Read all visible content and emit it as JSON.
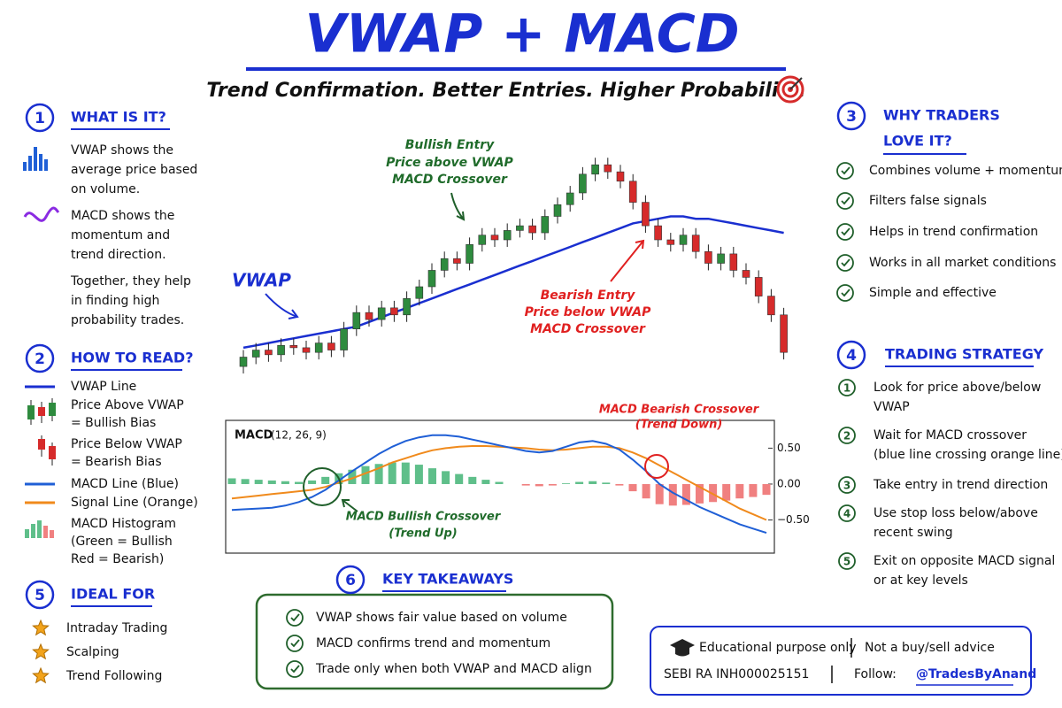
{
  "title": "VWAP + MACD",
  "subtitle": "Trend Confirmation. Better Entries. Higher Probability.",
  "what_is_it": {
    "number": "1",
    "heading": "WHAT IS IT?",
    "items": [
      [
        "VWAP shows the",
        "average price based",
        "on volume."
      ],
      [
        "MACD shows the",
        "momentum and",
        "trend direction."
      ],
      [
        "Together, they help",
        "in finding high",
        "probability trades."
      ]
    ]
  },
  "how_to_read": {
    "number": "2",
    "heading": "HOW TO READ?",
    "items": [
      [
        "VWAP Line"
      ],
      [
        "Price Above VWAP",
        "= Bullish Bias"
      ],
      [
        "Price Below VWAP",
        "= Bearish Bias"
      ],
      [
        "MACD Line (Blue)"
      ],
      [
        "Signal Line (Orange)"
      ],
      [
        "MACD Histogram",
        "(Green = Bullish",
        "Red = Bearish)"
      ]
    ]
  },
  "ideal_for": {
    "number": "5",
    "heading": "IDEAL FOR",
    "items": [
      "Intraday Trading",
      "Scalping",
      "Trend Following"
    ]
  },
  "why_traders": {
    "number": "3",
    "heading": [
      "WHY TRADERS",
      "LOVE IT?"
    ],
    "items": [
      "Combines volume + momentum",
      "Filters false signals",
      "Helps in trend confirmation",
      "Works in all market conditions",
      "Simple and effective"
    ]
  },
  "trading_strategy": {
    "number": "4",
    "heading": "TRADING STRATEGY",
    "steps": [
      {
        "number": "1",
        "lines": [
          "Look for price above/below",
          "VWAP"
        ]
      },
      {
        "number": "2",
        "lines": [
          "Wait for MACD crossover",
          "(blue line crossing orange line)"
        ]
      },
      {
        "number": "3",
        "lines": [
          "Take entry in trend direction"
        ]
      },
      {
        "number": "4",
        "lines": [
          "Use stop loss below/above",
          "recent swing"
        ]
      },
      {
        "number": "5",
        "lines": [
          "Exit on opposite MACD signal",
          "or at key levels"
        ]
      }
    ]
  },
  "key_takeaways": {
    "number": "6",
    "heading": "KEY TAKEAWAYS",
    "items": [
      "VWAP shows fair value based on volume",
      "MACD confirms trend and momentum",
      "Trade only when both VWAP and MACD align"
    ]
  },
  "footer": {
    "disclaimer": "Educational purpose only",
    "advice": "Not a buy/sell advice",
    "registration": "SEBI RA INH000025151",
    "follow": "Follow:",
    "handle": "@TradesByAnand"
  },
  "chart_data": [
    {
      "type": "candlestick",
      "ylim": [
        0,
        100
      ],
      "up_color": "#2e8b3e",
      "down_color": "#d62b2b",
      "vwap_color": "#1a2fd0",
      "vwap_label": "VWAP",
      "bullish_annotation": [
        "Bullish Entry",
        "Price above VWAP",
        "MACD Crossover"
      ],
      "bearish_annotation": [
        "Bearish Entry",
        "Price below VWAP",
        "MACD Crossover"
      ],
      "open": [
        6,
        10,
        13,
        11,
        15,
        14,
        12,
        16,
        13,
        22,
        29,
        26,
        31,
        28,
        35,
        40,
        47,
        52,
        50,
        58,
        62,
        60,
        64,
        66,
        63,
        70,
        75,
        80,
        88,
        92,
        89,
        85,
        76,
        66,
        60,
        58,
        62,
        55,
        50,
        54,
        47,
        44,
        36,
        28
      ],
      "high": [
        13,
        16,
        16,
        18,
        18,
        17,
        19,
        19,
        25,
        32,
        32,
        34,
        34,
        38,
        43,
        50,
        55,
        55,
        61,
        65,
        65,
        67,
        69,
        69,
        73,
        78,
        83,
        91,
        95,
        95,
        92,
        88,
        79,
        69,
        63,
        65,
        65,
        58,
        57,
        57,
        50,
        47,
        39,
        31
      ],
      "low": [
        3,
        7,
        8,
        8,
        11,
        9,
        9,
        10,
        10,
        19,
        23,
        23,
        25,
        25,
        32,
        37,
        44,
        47,
        47,
        55,
        57,
        57,
        61,
        60,
        60,
        67,
        72,
        77,
        85,
        86,
        82,
        73,
        63,
        57,
        55,
        55,
        52,
        47,
        47,
        44,
        41,
        33,
        25,
        9
      ],
      "close": [
        10,
        13,
        11,
        15,
        14,
        12,
        16,
        13,
        22,
        29,
        26,
        31,
        28,
        35,
        40,
        47,
        52,
        50,
        58,
        62,
        60,
        64,
        66,
        63,
        70,
        75,
        80,
        88,
        92,
        89,
        85,
        76,
        66,
        60,
        58,
        62,
        55,
        50,
        54,
        47,
        44,
        36,
        28,
        12
      ],
      "vwap": [
        14,
        15,
        16,
        17,
        18,
        19,
        20,
        21,
        22,
        23,
        25,
        27,
        29,
        31,
        33,
        35,
        37,
        39,
        41,
        43,
        45,
        47,
        49,
        51,
        53,
        55,
        57,
        59,
        61,
        63,
        65,
        67,
        68,
        69,
        70,
        70,
        69,
        69,
        68,
        67,
        66,
        65,
        64,
        63
      ]
    },
    {
      "type": "macd",
      "title": "MACD",
      "params": "(12, 26, 9)",
      "ylim": [
        -0.9,
        0.85
      ],
      "yticks": [
        {
          "value": 0.5,
          "label": "0.50"
        },
        {
          "value": 0,
          "label": "0.00"
        },
        {
          "value": -0.5,
          "label": "−0.50"
        }
      ],
      "bearish_annotation": [
        "MACD Bearish Crossover",
        "(Trend Down)"
      ],
      "bullish_annotation": [
        "MACD Bullish Crossover",
        "(Trend Up)"
      ],
      "series": [
        {
          "name": "MACD Line",
          "color": "#1f5fd6",
          "values": [
            -0.36,
            -0.35,
            -0.34,
            -0.33,
            -0.3,
            -0.25,
            -0.18,
            -0.08,
            0.05,
            0.18,
            0.3,
            0.42,
            0.52,
            0.6,
            0.65,
            0.68,
            0.68,
            0.66,
            0.62,
            0.58,
            0.54,
            0.5,
            0.46,
            0.44,
            0.46,
            0.52,
            0.58,
            0.6,
            0.56,
            0.48,
            0.34,
            0.18,
            0.0,
            -0.12,
            -0.22,
            -0.32,
            -0.4,
            -0.48,
            -0.56,
            -0.62,
            -0.68
          ]
        },
        {
          "name": "Signal Line",
          "color": "#f08a1c",
          "values": [
            -0.2,
            -0.18,
            -0.16,
            -0.14,
            -0.12,
            -0.1,
            -0.08,
            -0.04,
            0.02,
            0.08,
            0.15,
            0.22,
            0.3,
            0.36,
            0.42,
            0.47,
            0.5,
            0.52,
            0.53,
            0.53,
            0.52,
            0.51,
            0.5,
            0.48,
            0.47,
            0.48,
            0.5,
            0.52,
            0.52,
            0.5,
            0.44,
            0.36,
            0.26,
            0.16,
            0.06,
            -0.04,
            -0.14,
            -0.24,
            -0.34,
            -0.42,
            -0.5
          ]
        }
      ],
      "histogram": {
        "positive_color": "#5fbf8a",
        "negative_color": "#f08080",
        "values": [
          0.08,
          0.07,
          0.06,
          0.05,
          0.04,
          0.03,
          0.05,
          0.1,
          0.15,
          0.2,
          0.25,
          0.28,
          0.3,
          0.3,
          0.27,
          0.22,
          0.18,
          0.14,
          0.1,
          0.06,
          0.03,
          0.0,
          -0.02,
          -0.03,
          -0.02,
          0.01,
          0.03,
          0.04,
          0.02,
          -0.02,
          -0.1,
          -0.2,
          -0.28,
          -0.3,
          -0.29,
          -0.27,
          -0.25,
          -0.23,
          -0.2,
          -0.18,
          -0.15
        ]
      }
    }
  ]
}
